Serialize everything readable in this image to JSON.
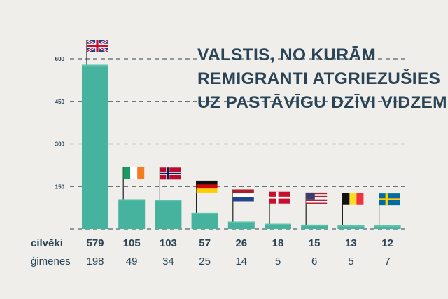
{
  "title": [
    "VALSTIS, NO KURĀM",
    "REMIGRANTI ATGRIEZUŠIES",
    "UZ PASTĀVĪGU DZĪVI VIDZEMĒ"
  ],
  "colors": {
    "bar": "#45b39d",
    "bar_top": "#5cc3ad",
    "text": "#2a4456",
    "grid": "#2a4456",
    "background": "#efeeeb"
  },
  "chart_data": {
    "type": "bar",
    "title": "VALSTIS, NO KURĀM REMIGRANTI ATGRIEZUŠIES UZ PASTĀVĪGU DZĪVI VIDZEMĒ",
    "categories": [
      "United Kingdom",
      "Ireland",
      "Norway",
      "Germany",
      "Netherlands",
      "Denmark",
      "United States",
      "Belgium",
      "Sweden"
    ],
    "flag_icons": [
      "uk-flag-icon",
      "ireland-flag-icon",
      "norway-flag-icon",
      "germany-flag-icon",
      "netherlands-flag-icon",
      "denmark-flag-icon",
      "usa-flag-icon",
      "belgium-flag-icon",
      "sweden-flag-icon"
    ],
    "series": [
      {
        "name": "cilvēki",
        "values": [
          579,
          105,
          103,
          57,
          26,
          18,
          15,
          13,
          12
        ]
      },
      {
        "name": "ģimenes",
        "values": [
          198,
          49,
          34,
          25,
          14,
          5,
          6,
          5,
          7
        ]
      }
    ],
    "yticks": [
      150,
      300,
      450,
      600
    ],
    "ylim": [
      0,
      600
    ],
    "grid": true,
    "grid_style": "dashed"
  }
}
